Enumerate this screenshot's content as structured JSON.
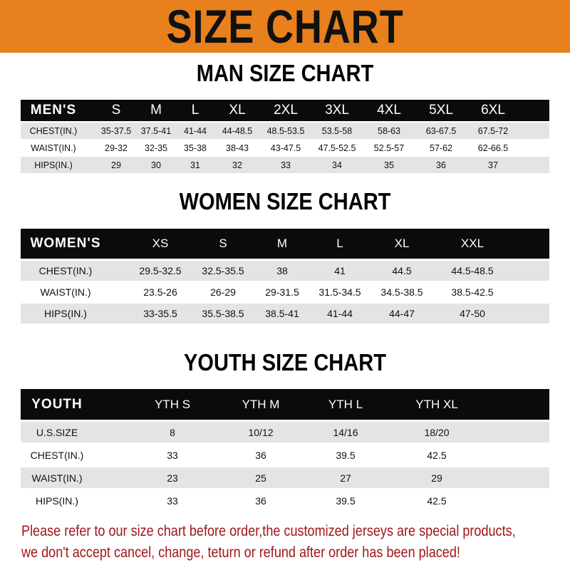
{
  "banner": {
    "title": "SIZE CHART",
    "color": "#e8801e"
  },
  "men": {
    "title": "MAN SIZE CHART",
    "headers": [
      "MEN'S",
      "S",
      "M",
      "L",
      "XL",
      "2XL",
      "3XL",
      "4XL",
      "5XL",
      "6XL"
    ],
    "rows": [
      [
        "CHEST(IN.)",
        "35-37.5",
        "37.5-41",
        "41-44",
        "44-48.5",
        "48.5-53.5",
        "53.5-58",
        "58-63",
        "63-67.5",
        "67.5-72"
      ],
      [
        "WAIST(IN.)",
        "29-32",
        "32-35",
        "35-38",
        "38-43",
        "43-47.5",
        "47.5-52.5",
        "52.5-57",
        "57-62",
        "62-66.5"
      ],
      [
        "HIPS(IN.)",
        "29",
        "30",
        "31",
        "32",
        "33",
        "34",
        "35",
        "36",
        "37"
      ]
    ]
  },
  "women": {
    "title": "WOMEN SIZE CHART",
    "headers": [
      "WOMEN'S",
      "XS",
      "S",
      "M",
      "L",
      "XL",
      "XXL"
    ],
    "rows": [
      [
        "CHEST(IN.)",
        "29.5-32.5",
        "32.5-35.5",
        "38",
        "41",
        "44.5",
        "44.5-48.5"
      ],
      [
        "WAIST(IN.)",
        "23.5-26",
        "26-29",
        "29-31.5",
        "31.5-34.5",
        "34.5-38.5",
        "38.5-42.5"
      ],
      [
        "HIPS(IN.)",
        "33-35.5",
        "35.5-38.5",
        "38.5-41",
        "41-44",
        "44-47",
        "47-50"
      ]
    ]
  },
  "youth": {
    "title": "YOUTH SIZE CHART",
    "headers": [
      "YOUTH",
      "YTH S",
      "YTH M",
      "YTH L",
      "YTH XL"
    ],
    "rows": [
      [
        "U.S.SIZE",
        "8",
        "10/12",
        "14/16",
        "18/20"
      ],
      [
        "CHEST(IN.)",
        "33",
        "36",
        "39.5",
        "42.5"
      ],
      [
        "WAIST(IN.)",
        "23",
        "25",
        "27",
        "29"
      ],
      [
        "HIPS(IN.)",
        "33",
        "36",
        "39.5",
        "42.5"
      ]
    ]
  },
  "notice": {
    "line1": "Please refer to our size chart before order,the customized jerseys are special products,",
    "line2": "we don't accept cancel, change, teturn or refund after order has been placed!",
    "color": "#a3151b"
  }
}
